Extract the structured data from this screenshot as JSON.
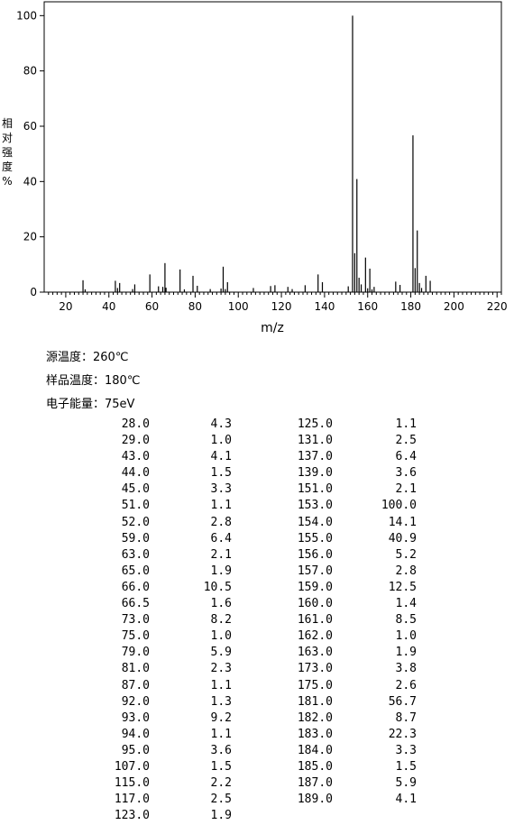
{
  "chart_data": {
    "type": "bar",
    "xlabel": "m/z",
    "ylabel": "相对强度%",
    "ylabel_chars": [
      "相",
      "对",
      "强",
      "度",
      "%"
    ],
    "xlim": [
      10,
      222
    ],
    "ylim": [
      0,
      105
    ],
    "x_ticks": [
      20,
      40,
      60,
      80,
      100,
      120,
      140,
      160,
      180,
      200,
      220
    ],
    "y_ticks": [
      0,
      20,
      40,
      60,
      80,
      100
    ],
    "grid": false,
    "peaks": [
      {
        "mz": 28.0,
        "intensity": 4.3
      },
      {
        "mz": 29.0,
        "intensity": 1.0
      },
      {
        "mz": 43.0,
        "intensity": 4.1
      },
      {
        "mz": 44.0,
        "intensity": 1.5
      },
      {
        "mz": 45.0,
        "intensity": 3.3
      },
      {
        "mz": 51.0,
        "intensity": 1.1
      },
      {
        "mz": 52.0,
        "intensity": 2.8
      },
      {
        "mz": 59.0,
        "intensity": 6.4
      },
      {
        "mz": 63.0,
        "intensity": 2.1
      },
      {
        "mz": 65.0,
        "intensity": 1.9
      },
      {
        "mz": 66.0,
        "intensity": 10.5
      },
      {
        "mz": 66.5,
        "intensity": 1.6
      },
      {
        "mz": 73.0,
        "intensity": 8.2
      },
      {
        "mz": 75.0,
        "intensity": 1.0
      },
      {
        "mz": 79.0,
        "intensity": 5.9
      },
      {
        "mz": 81.0,
        "intensity": 2.3
      },
      {
        "mz": 87.0,
        "intensity": 1.1
      },
      {
        "mz": 92.0,
        "intensity": 1.3
      },
      {
        "mz": 93.0,
        "intensity": 9.2
      },
      {
        "mz": 94.0,
        "intensity": 1.1
      },
      {
        "mz": 95.0,
        "intensity": 3.6
      },
      {
        "mz": 107.0,
        "intensity": 1.5
      },
      {
        "mz": 115.0,
        "intensity": 2.2
      },
      {
        "mz": 117.0,
        "intensity": 2.5
      },
      {
        "mz": 123.0,
        "intensity": 1.9
      },
      {
        "mz": 125.0,
        "intensity": 1.1
      },
      {
        "mz": 131.0,
        "intensity": 2.5
      },
      {
        "mz": 137.0,
        "intensity": 6.4
      },
      {
        "mz": 139.0,
        "intensity": 3.6
      },
      {
        "mz": 151.0,
        "intensity": 2.1
      },
      {
        "mz": 153.0,
        "intensity": 100.0
      },
      {
        "mz": 154.0,
        "intensity": 14.1
      },
      {
        "mz": 155.0,
        "intensity": 40.9
      },
      {
        "mz": 156.0,
        "intensity": 5.2
      },
      {
        "mz": 157.0,
        "intensity": 2.8
      },
      {
        "mz": 159.0,
        "intensity": 12.5
      },
      {
        "mz": 160.0,
        "intensity": 1.4
      },
      {
        "mz": 161.0,
        "intensity": 8.5
      },
      {
        "mz": 162.0,
        "intensity": 1.0
      },
      {
        "mz": 163.0,
        "intensity": 1.9
      },
      {
        "mz": 173.0,
        "intensity": 3.8
      },
      {
        "mz": 175.0,
        "intensity": 2.6
      },
      {
        "mz": 181.0,
        "intensity": 56.7
      },
      {
        "mz": 182.0,
        "intensity": 8.7
      },
      {
        "mz": 183.0,
        "intensity": 22.3
      },
      {
        "mz": 184.0,
        "intensity": 3.3
      },
      {
        "mz": 185.0,
        "intensity": 1.5
      },
      {
        "mz": 187.0,
        "intensity": 5.9
      },
      {
        "mz": 189.0,
        "intensity": 4.1
      }
    ]
  },
  "conditions": {
    "source_temp": "源温度：260℃",
    "sample_temp": "样品温度：180℃",
    "electron_energy": "电子能量：75eV"
  },
  "table": {
    "left": [
      [
        "28.0",
        "4.3"
      ],
      [
        "29.0",
        "1.0"
      ],
      [
        "43.0",
        "4.1"
      ],
      [
        "44.0",
        "1.5"
      ],
      [
        "45.0",
        "3.3"
      ],
      [
        "51.0",
        "1.1"
      ],
      [
        "52.0",
        "2.8"
      ],
      [
        "59.0",
        "6.4"
      ],
      [
        "63.0",
        "2.1"
      ],
      [
        "65.0",
        "1.9"
      ],
      [
        "66.0",
        "10.5"
      ],
      [
        "66.5",
        "1.6"
      ],
      [
        "73.0",
        "8.2"
      ],
      [
        "75.0",
        "1.0"
      ],
      [
        "79.0",
        "5.9"
      ],
      [
        "81.0",
        "2.3"
      ],
      [
        "87.0",
        "1.1"
      ],
      [
        "92.0",
        "1.3"
      ],
      [
        "93.0",
        "9.2"
      ],
      [
        "94.0",
        "1.1"
      ],
      [
        "95.0",
        "3.6"
      ],
      [
        "107.0",
        "1.5"
      ],
      [
        "115.0",
        "2.2"
      ],
      [
        "117.0",
        "2.5"
      ],
      [
        "123.0",
        "1.9"
      ]
    ],
    "right": [
      [
        "125.0",
        "1.1"
      ],
      [
        "131.0",
        "2.5"
      ],
      [
        "137.0",
        "6.4"
      ],
      [
        "139.0",
        "3.6"
      ],
      [
        "151.0",
        "2.1"
      ],
      [
        "153.0",
        "100.0"
      ],
      [
        "154.0",
        "14.1"
      ],
      [
        "155.0",
        "40.9"
      ],
      [
        "156.0",
        "5.2"
      ],
      [
        "157.0",
        "2.8"
      ],
      [
        "159.0",
        "12.5"
      ],
      [
        "160.0",
        "1.4"
      ],
      [
        "161.0",
        "8.5"
      ],
      [
        "162.0",
        "1.0"
      ],
      [
        "163.0",
        "1.9"
      ],
      [
        "173.0",
        "3.8"
      ],
      [
        "175.0",
        "2.6"
      ],
      [
        "181.0",
        "56.7"
      ],
      [
        "182.0",
        "8.7"
      ],
      [
        "183.0",
        "22.3"
      ],
      [
        "184.0",
        "3.3"
      ],
      [
        "185.0",
        "1.5"
      ],
      [
        "187.0",
        "5.9"
      ],
      [
        "189.0",
        "4.1"
      ]
    ]
  }
}
